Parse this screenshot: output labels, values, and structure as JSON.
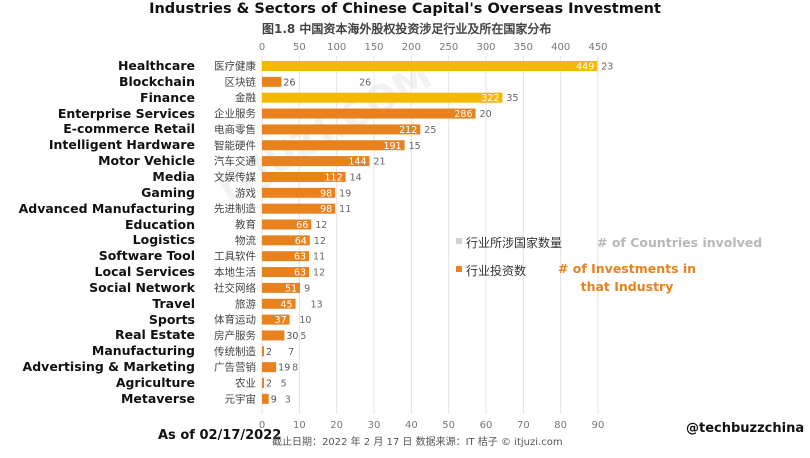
{
  "title": "Industries & Sectors of Chinese Capital's Overseas Investment",
  "subtitle": "图1.8 中国资本海外股权投资涉足行业及所在国家分布",
  "watermark": "ITJUZI.COM",
  "legend": {
    "countries_cn": "行业所涉国家数量",
    "countries_en": "# of Countries involved",
    "investments_cn": "行业投资数",
    "investments_en": "# of Investments in that Industry"
  },
  "as_of": "As of 02/17/2022",
  "handle": "@techbuzzchina",
  "footer": "截止日期：2022 年 2 月 17 日        数据来源：IT 桔子 © itjuzi.com",
  "colors": {
    "investments": "#e8821e",
    "countries": "#f5b800",
    "grid": "#e4e4e4"
  },
  "chart_data": {
    "type": "bar",
    "orientation": "horizontal",
    "top_axis": {
      "ticks": [
        0,
        50,
        100,
        150,
        200,
        250,
        300,
        350,
        400,
        450
      ],
      "range": [
        0,
        450
      ]
    },
    "bottom_axis": {
      "ticks": [
        0,
        10,
        20,
        30,
        40,
        50,
        60,
        70,
        80,
        90
      ],
      "range": [
        0,
        90
      ]
    },
    "categories_cn": [
      "医疗健康",
      "区块链",
      "金融",
      "企业服务",
      "电商零售",
      "智能硬件",
      "汽车交通",
      "文娱传媒",
      "游戏",
      "先进制造",
      "教育",
      "物流",
      "工具软件",
      "本地生活",
      "社交网络",
      "旅游",
      "体育运动",
      "房产服务",
      "传统制造",
      "广告营销",
      "农业",
      "元宇宙"
    ],
    "categories_en": [
      "Healthcare",
      "Blockchain",
      "Finance",
      "Enterprise Services",
      "E-commerce Retail",
      "Intelligent Hardware",
      "Motor Vehicle",
      "Media",
      "Gaming",
      "Advanced Manufacturing",
      "Education",
      "Logistics",
      "Software Tool",
      "Local Services",
      "Social Network",
      "Travel",
      "Sports",
      "Real Estate",
      "Manufacturing",
      "Advertising & Marketing",
      "Agriculture",
      "Metaverse"
    ],
    "series": [
      {
        "name": "行业投资数",
        "axis": "top",
        "values": [
          449,
          26,
          322,
          286,
          212,
          191,
          144,
          112,
          98,
          98,
          66,
          64,
          63,
          63,
          51,
          45,
          37,
          30,
          2,
          19,
          2,
          9
        ]
      },
      {
        "name": "行业所涉国家数量",
        "axis": "bottom",
        "values": [
          23,
          26,
          35,
          20,
          25,
          15,
          21,
          14,
          19,
          11,
          12,
          12,
          11,
          12,
          9,
          13,
          10,
          5,
          7,
          8,
          5,
          3
        ]
      }
    ],
    "highlight": [
      0,
      2
    ]
  }
}
